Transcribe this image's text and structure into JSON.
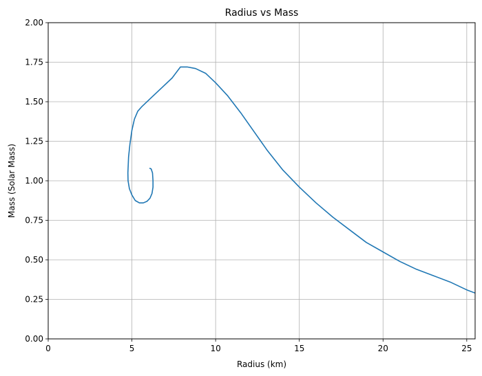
{
  "chart_data": {
    "type": "line",
    "title": "Radius vs Mass",
    "xlabel": "Radius (km)",
    "ylabel": "Mass (Solar Mass)",
    "xlim": [
      0,
      25.5
    ],
    "ylim": [
      0,
      2.0
    ],
    "grid": true,
    "x_ticks": [
      0,
      5,
      10,
      15,
      20,
      25
    ],
    "x_tick_labels": [
      "0",
      "5",
      "10",
      "15",
      "20",
      "25"
    ],
    "y_ticks": [
      0,
      0.25,
      0.5,
      0.75,
      1.0,
      1.25,
      1.5,
      1.75,
      2.0
    ],
    "y_tick_labels": [
      "0.00",
      "0.25",
      "0.50",
      "0.75",
      "1.00",
      "1.25",
      "1.50",
      "1.75",
      "2.00"
    ],
    "series": [
      {
        "color": "#1f77b4",
        "x": [
          6.05,
          6.15,
          6.23,
          6.26,
          6.26,
          6.2,
          6.08,
          5.9,
          5.68,
          5.45,
          5.2,
          5.0,
          4.85,
          4.77,
          4.76,
          4.8,
          4.88,
          5.0,
          5.15,
          5.35,
          5.6,
          6.2,
          6.8,
          7.4,
          7.9,
          8.3,
          8.8,
          9.4,
          10.0,
          10.7,
          11.5,
          12.3,
          13.1,
          14.0,
          15.0,
          16.0,
          17.0,
          18.0,
          19.0,
          20.0,
          21.0,
          22.0,
          23.0,
          24.0,
          25.0,
          25.5
        ],
        "y": [
          1.08,
          1.075,
          1.05,
          1.0,
          0.96,
          0.92,
          0.89,
          0.87,
          0.86,
          0.86,
          0.875,
          0.91,
          0.95,
          1.0,
          1.05,
          1.15,
          1.23,
          1.32,
          1.39,
          1.44,
          1.47,
          1.53,
          1.59,
          1.65,
          1.72,
          1.72,
          1.71,
          1.68,
          1.62,
          1.54,
          1.43,
          1.31,
          1.19,
          1.07,
          0.96,
          0.86,
          0.77,
          0.69,
          0.61,
          0.55,
          0.49,
          0.44,
          0.4,
          0.36,
          0.31,
          0.29
        ]
      }
    ]
  }
}
